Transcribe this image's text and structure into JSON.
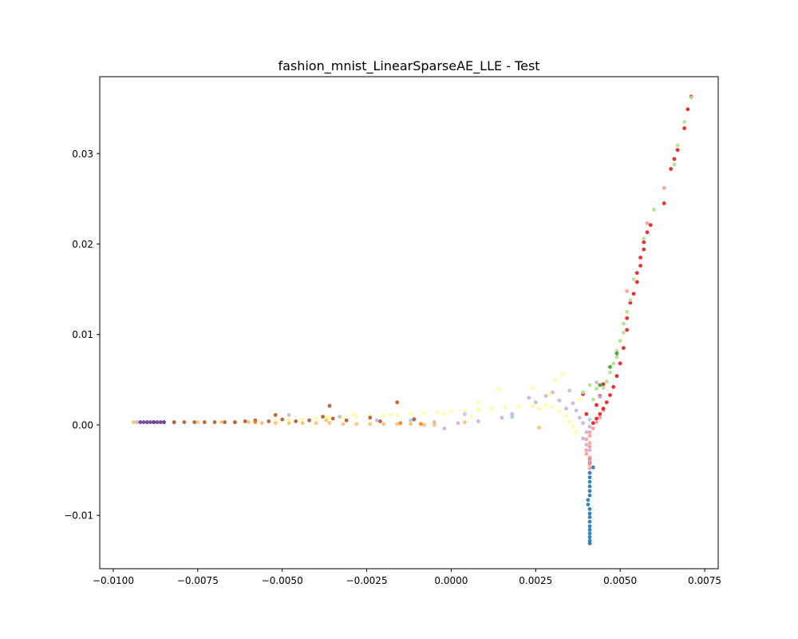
{
  "chart_data": {
    "type": "scatter",
    "title": "fashion_mnist_LinearSparseAE_LLE - Test",
    "xlabel": "",
    "ylabel": "",
    "xlim": [
      -0.0104,
      0.0079
    ],
    "ylim": [
      -0.0159,
      0.0385
    ],
    "xticks": [
      -0.01,
      -0.0075,
      -0.005,
      -0.0025,
      0.0,
      0.0025,
      0.005,
      0.0075
    ],
    "xtick_labels": [
      "−0.0100",
      "−0.0075",
      "−0.0050",
      "−0.0025",
      "0.0000",
      "0.0025",
      "0.0050",
      "0.0075"
    ],
    "yticks": [
      -0.01,
      0.0,
      0.01,
      0.02,
      0.03
    ],
    "ytick_labels": [
      "−0.01",
      "0.00",
      "0.01",
      "0.02",
      "0.03"
    ],
    "grid": false,
    "legend": "none",
    "colormap": "Paired",
    "series": [
      {
        "color": "#1f78b4",
        "points": [
          [
            0.0041,
            -0.0131
          ],
          [
            0.0041,
            -0.0128
          ],
          [
            0.0041,
            -0.0124
          ],
          [
            0.0041,
            -0.012
          ],
          [
            0.0041,
            -0.0116
          ],
          [
            0.0041,
            -0.0112
          ],
          [
            0.0041,
            -0.0107
          ],
          [
            0.0041,
            -0.0102
          ],
          [
            0.0041,
            -0.0098
          ],
          [
            0.0041,
            -0.0093
          ],
          [
            0.00405,
            -0.0088
          ],
          [
            0.00405,
            -0.0083
          ],
          [
            0.0041,
            -0.0078
          ],
          [
            0.0041,
            -0.0073
          ],
          [
            0.0041,
            -0.0068
          ],
          [
            0.0041,
            -0.0063
          ],
          [
            0.0041,
            -0.0058
          ],
          [
            0.0041,
            -0.0053
          ],
          [
            0.0042,
            -0.0047
          ],
          [
            0.0041,
            -0.0042
          ],
          [
            0.0041,
            -0.0037
          ]
        ]
      },
      {
        "color": "#fb9a99",
        "points": [
          [
            0.0041,
            -0.0048
          ],
          [
            0.0041,
            -0.0044
          ],
          [
            0.0041,
            -0.004
          ],
          [
            0.0041,
            -0.0036
          ],
          [
            0.004,
            -0.0032
          ],
          [
            0.004,
            -0.0028
          ],
          [
            0.0041,
            -0.0024
          ],
          [
            0.0041,
            -0.002
          ],
          [
            0.004,
            -0.0016
          ],
          [
            0.0041,
            -0.0012
          ],
          [
            0.0041,
            -0.0008
          ],
          [
            0.0042,
            -0.0004
          ],
          [
            0.0043,
            0.0003
          ],
          [
            0.0044,
            0.0008
          ],
          [
            0.0045,
            0.0016
          ],
          [
            0.0063,
            0.0262
          ],
          [
            0.0058,
            0.0223
          ],
          [
            0.0052,
            0.0148
          ]
        ]
      },
      {
        "color": "#e31a1c",
        "points": [
          [
            0.0042,
            0.0002
          ],
          [
            0.0043,
            0.0007
          ],
          [
            0.0044,
            0.0012
          ],
          [
            0.0045,
            0.0018
          ],
          [
            0.0046,
            0.0025
          ],
          [
            0.0047,
            0.0033
          ],
          [
            0.0048,
            0.0042
          ],
          [
            0.0049,
            0.0054
          ],
          [
            0.005,
            0.0068
          ],
          [
            0.0051,
            0.0085
          ],
          [
            0.0052,
            0.0105
          ],
          [
            0.0052,
            0.0118
          ],
          [
            0.0053,
            0.0135
          ],
          [
            0.0054,
            0.0145
          ],
          [
            0.0055,
            0.0158
          ],
          [
            0.0055,
            0.0168
          ],
          [
            0.0056,
            0.0176
          ],
          [
            0.0056,
            0.0185
          ],
          [
            0.0057,
            0.0194
          ],
          [
            0.0057,
            0.0202
          ],
          [
            0.0058,
            0.0213
          ],
          [
            0.0059,
            0.0221
          ],
          [
            0.0063,
            0.0245
          ],
          [
            0.0065,
            0.0283
          ],
          [
            0.0066,
            0.0294
          ],
          [
            0.0067,
            0.0304
          ],
          [
            0.0069,
            0.0328
          ],
          [
            0.007,
            0.0349
          ],
          [
            0.0071,
            0.0363
          ],
          [
            0.0045,
            0.0045
          ],
          [
            0.0044,
            0.0032
          ],
          [
            0.0043,
            0.0022
          ],
          [
            0.0039,
            0.0034
          ],
          [
            0.004,
            0.0012
          ]
        ]
      },
      {
        "color": "#b2df8a",
        "points": [
          [
            0.0071,
            0.0362
          ],
          [
            0.0069,
            0.0335
          ],
          [
            0.0067,
            0.0309
          ],
          [
            0.0066,
            0.0288
          ],
          [
            0.006,
            0.0238
          ],
          [
            0.0057,
            0.0206
          ],
          [
            0.0054,
            0.0161
          ],
          [
            0.0053,
            0.0138
          ],
          [
            0.0052,
            0.0125
          ],
          [
            0.0051,
            0.0112
          ],
          [
            0.0051,
            0.0102
          ],
          [
            0.005,
            0.0093
          ],
          [
            0.0049,
            0.0082
          ],
          [
            0.0049,
            0.0075
          ],
          [
            0.0048,
            0.0068
          ],
          [
            0.0047,
            0.0058
          ],
          [
            0.0046,
            0.0048
          ],
          [
            0.0045,
            0.0041
          ],
          [
            0.0043,
            0.004
          ],
          [
            0.0041,
            0.0044
          ],
          [
            0.0039,
            0.0036
          ],
          [
            0.0042,
            0.0028
          ]
        ]
      },
      {
        "color": "#cab2d6",
        "points": [
          [
            0.0041,
            -0.0028
          ],
          [
            0.004,
            -0.0022
          ],
          [
            0.0039,
            -0.0015
          ],
          [
            0.004,
            -0.0008
          ],
          [
            0.0041,
            -0.0002
          ],
          [
            0.0039,
            0.0002
          ],
          [
            0.0038,
            0.0008
          ],
          [
            0.0037,
            0.0016
          ],
          [
            0.0036,
            0.0024
          ],
          [
            0.0034,
            0.0018
          ],
          [
            0.0032,
            0.0027
          ],
          [
            0.003,
            0.0036
          ],
          [
            0.0028,
            0.0032
          ],
          [
            0.0025,
            0.0025
          ],
          [
            0.0023,
            0.003
          ],
          [
            0.0018,
            0.0012
          ],
          [
            0.0015,
            0.0008
          ],
          [
            0.0008,
            0.0004
          ],
          [
            0.0002,
            0.0002
          ],
          [
            -0.0002,
            -0.0004
          ],
          [
            -0.0005,
            0.0003
          ],
          [
            -0.0011,
            0.0007
          ],
          [
            -0.0022,
            0.0005
          ],
          [
            -0.0033,
            0.0009
          ],
          [
            -0.0048,
            0.0011
          ],
          [
            -0.0082,
            0.0003
          ],
          [
            -0.009,
            0.0003
          ],
          [
            -0.0093,
            0.0003
          ],
          [
            0.0044,
            0.0031
          ],
          [
            0.0043,
            0.0047
          ],
          [
            0.0035,
            0.0038
          ]
        ]
      },
      {
        "color": "#ffff99",
        "points": [
          [
            -0.0052,
            0.0005
          ],
          [
            -0.0048,
            0.0006
          ],
          [
            -0.0044,
            0.0006
          ],
          [
            -0.004,
            0.0007
          ],
          [
            -0.0036,
            0.0008
          ],
          [
            -0.0032,
            0.0008
          ],
          [
            -0.0028,
            0.0009
          ],
          [
            -0.0024,
            0.001
          ],
          [
            -0.002,
            0.001
          ],
          [
            -0.0016,
            0.0011
          ],
          [
            -0.0012,
            0.0012
          ],
          [
            -0.0008,
            0.0013
          ],
          [
            -0.0004,
            0.0014
          ],
          [
            0.0,
            0.0015
          ],
          [
            0.0004,
            0.0016
          ],
          [
            0.0008,
            0.0017
          ],
          [
            0.0012,
            0.0018
          ],
          [
            0.0016,
            0.0019
          ],
          [
            0.002,
            0.002
          ],
          [
            0.0024,
            0.0021
          ],
          [
            0.0026,
            0.0018
          ],
          [
            0.0028,
            0.0022
          ],
          [
            0.003,
            0.002
          ],
          [
            0.0032,
            0.0015
          ],
          [
            0.0034,
            0.001
          ],
          [
            0.0035,
            0.0004
          ],
          [
            0.0036,
            -0.0002
          ],
          [
            0.0037,
            -0.0008
          ],
          [
            0.0033,
            0.0056
          ],
          [
            0.0031,
            0.0049
          ],
          [
            0.0029,
            0.0034
          ],
          [
            0.0014,
            0.0039
          ],
          [
            0.0008,
            0.0025
          ],
          [
            -0.0002,
            0.0012
          ],
          [
            -0.0018,
            0.0011
          ],
          [
            -0.0029,
            0.0012
          ],
          [
            -0.0037,
            0.0009
          ],
          [
            0.0038,
            0.0028
          ],
          [
            0.0024,
            0.0041
          ],
          [
            0.0006,
            0.0009
          ]
        ]
      },
      {
        "color": "#fdbf6f",
        "points": [
          [
            -0.0068,
            0.0003
          ],
          [
            -0.0064,
            0.0003
          ],
          [
            -0.006,
            0.0003
          ],
          [
            -0.0056,
            0.0002
          ],
          [
            -0.0052,
            0.0002
          ],
          [
            -0.0048,
            0.0002
          ],
          [
            -0.0044,
            0.0002
          ],
          [
            -0.004,
            0.0002
          ],
          [
            -0.0036,
            0.0002
          ],
          [
            -0.0032,
            0.0001
          ],
          [
            -0.0028,
            0.0001
          ],
          [
            -0.0024,
            0.0001
          ],
          [
            -0.002,
            0.0001
          ],
          [
            -0.0016,
            0.0001
          ],
          [
            -0.0012,
            0.0001
          ],
          [
            -0.0008,
            0.0
          ],
          [
            -0.0005,
            0.0
          ],
          [
            -0.0094,
            0.0003
          ],
          [
            -0.009,
            0.0003
          ],
          [
            -0.0086,
            0.0003
          ],
          [
            -0.0075,
            0.0003
          ],
          [
            0.0004,
            0.0003
          ],
          [
            0.0026,
            -0.0003
          ],
          [
            -0.0037,
            0.0005
          ]
        ]
      },
      {
        "color": "#b15928",
        "points": [
          [
            -0.0088,
            0.0003
          ],
          [
            -0.0085,
            0.0003
          ],
          [
            -0.0082,
            0.0003
          ],
          [
            -0.0079,
            0.0003
          ],
          [
            -0.0076,
            0.0003
          ],
          [
            -0.0073,
            0.0003
          ],
          [
            -0.007,
            0.0003
          ],
          [
            -0.0067,
            0.0003
          ],
          [
            -0.0064,
            0.0003
          ],
          [
            -0.0061,
            0.0004
          ],
          [
            -0.0058,
            0.0005
          ],
          [
            -0.0054,
            0.0004
          ],
          [
            -0.005,
            0.0006
          ],
          [
            -0.0046,
            0.0004
          ],
          [
            -0.0042,
            0.0005
          ],
          [
            -0.0038,
            0.0009
          ],
          [
            -0.0035,
            0.0007
          ],
          [
            -0.0031,
            0.0005
          ],
          [
            -0.0024,
            0.0008
          ],
          [
            -0.0021,
            0.0004
          ],
          [
            -0.0016,
            0.0025
          ],
          [
            -0.0011,
            0.0006
          ],
          [
            -0.0036,
            0.0021
          ],
          [
            -0.0052,
            0.0011
          ]
        ]
      },
      {
        "color": "#6a3d9a",
        "points": [
          [
            -0.0092,
            0.0003
          ],
          [
            -0.0091,
            0.0003
          ],
          [
            -0.009,
            0.0003
          ],
          [
            -0.0089,
            0.0003
          ],
          [
            -0.0088,
            0.0003
          ],
          [
            -0.0087,
            0.0003
          ],
          [
            -0.0086,
            0.0003
          ],
          [
            -0.0085,
            0.0003
          ]
        ]
      },
      {
        "color": "#a6cee3",
        "points": [
          [
            0.0004,
            0.0012
          ],
          [
            0.0018,
            0.0009
          ],
          [
            0.0041,
            0.0006
          ],
          [
            -0.0012,
            0.0005
          ]
        ]
      },
      {
        "color": "#33a02c",
        "points": [
          [
            0.0044,
            0.0044
          ],
          [
            0.0047,
            0.0064
          ],
          [
            0.0049,
            0.0079
          ]
        ]
      },
      {
        "color": "#ff7f00",
        "points": [
          [
            -0.0015,
            0.0002
          ],
          [
            -0.0009,
            0.0001
          ],
          [
            -0.0058,
            0.0003
          ]
        ]
      }
    ]
  }
}
